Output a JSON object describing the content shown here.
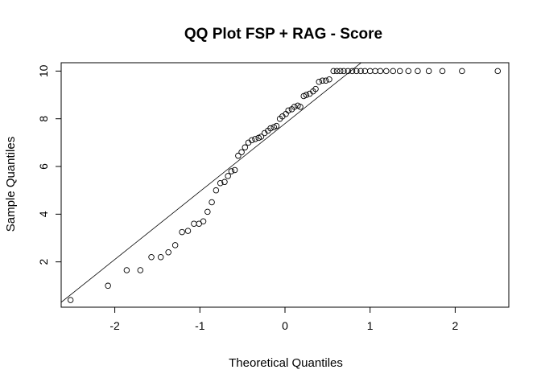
{
  "chart_data": {
    "type": "scatter",
    "subtype": "qq-plot",
    "title": "QQ Plot FSP + RAG - Score",
    "xlabel": "Theoretical Quantiles",
    "ylabel": "Sample Quantiles",
    "xlim": [
      -2.63,
      2.63
    ],
    "ylim": [
      0.1,
      10.35
    ],
    "xticks": [
      -2,
      -1,
      0,
      1,
      2
    ],
    "xtick_labels": [
      "-2",
      "-1",
      "0",
      "1",
      "2"
    ],
    "yticks": [
      2,
      4,
      6,
      8,
      10
    ],
    "ytick_labels": [
      "2",
      "4",
      "6",
      "8",
      "10"
    ],
    "grid": false,
    "reference_line": {
      "slope": 2.85,
      "intercept": 7.8
    },
    "points": [
      {
        "x": -2.52,
        "y": 0.4
      },
      {
        "x": -2.08,
        "y": 1.0
      },
      {
        "x": -1.86,
        "y": 1.65
      },
      {
        "x": -1.7,
        "y": 1.65
      },
      {
        "x": -1.57,
        "y": 2.2
      },
      {
        "x": -1.46,
        "y": 2.2
      },
      {
        "x": -1.37,
        "y": 2.4
      },
      {
        "x": -1.29,
        "y": 2.7
      },
      {
        "x": -1.21,
        "y": 3.25
      },
      {
        "x": -1.14,
        "y": 3.3
      },
      {
        "x": -1.07,
        "y": 3.6
      },
      {
        "x": -1.01,
        "y": 3.6
      },
      {
        "x": -0.96,
        "y": 3.7
      },
      {
        "x": -0.91,
        "y": 4.1
      },
      {
        "x": -0.86,
        "y": 4.5
      },
      {
        "x": -0.81,
        "y": 5.0
      },
      {
        "x": -0.76,
        "y": 5.3
      },
      {
        "x": -0.71,
        "y": 5.35
      },
      {
        "x": -0.67,
        "y": 5.6
      },
      {
        "x": -0.63,
        "y": 5.8
      },
      {
        "x": -0.59,
        "y": 5.85
      },
      {
        "x": -0.55,
        "y": 6.45
      },
      {
        "x": -0.51,
        "y": 6.6
      },
      {
        "x": -0.47,
        "y": 6.8
      },
      {
        "x": -0.43,
        "y": 7.0
      },
      {
        "x": -0.39,
        "y": 7.1
      },
      {
        "x": -0.35,
        "y": 7.15
      },
      {
        "x": -0.31,
        "y": 7.2
      },
      {
        "x": -0.28,
        "y": 7.25
      },
      {
        "x": -0.24,
        "y": 7.4
      },
      {
        "x": -0.2,
        "y": 7.5
      },
      {
        "x": -0.17,
        "y": 7.6
      },
      {
        "x": -0.13,
        "y": 7.65
      },
      {
        "x": -0.1,
        "y": 7.7
      },
      {
        "x": -0.06,
        "y": 8.0
      },
      {
        "x": -0.03,
        "y": 8.1
      },
      {
        "x": 0.01,
        "y": 8.2
      },
      {
        "x": 0.04,
        "y": 8.35
      },
      {
        "x": 0.08,
        "y": 8.4
      },
      {
        "x": 0.11,
        "y": 8.5
      },
      {
        "x": 0.15,
        "y": 8.55
      },
      {
        "x": 0.18,
        "y": 8.5
      },
      {
        "x": 0.22,
        "y": 8.95
      },
      {
        "x": 0.25,
        "y": 9.0
      },
      {
        "x": 0.29,
        "y": 9.05
      },
      {
        "x": 0.33,
        "y": 9.15
      },
      {
        "x": 0.36,
        "y": 9.25
      },
      {
        "x": 0.4,
        "y": 9.55
      },
      {
        "x": 0.44,
        "y": 9.6
      },
      {
        "x": 0.48,
        "y": 9.6
      },
      {
        "x": 0.52,
        "y": 9.65
      },
      {
        "x": 0.57,
        "y": 10
      },
      {
        "x": 0.61,
        "y": 10
      },
      {
        "x": 0.65,
        "y": 10
      },
      {
        "x": 0.69,
        "y": 10
      },
      {
        "x": 0.74,
        "y": 10
      },
      {
        "x": 0.79,
        "y": 10
      },
      {
        "x": 0.84,
        "y": 10
      },
      {
        "x": 0.89,
        "y": 10
      },
      {
        "x": 0.94,
        "y": 10
      },
      {
        "x": 1.0,
        "y": 10
      },
      {
        "x": 1.06,
        "y": 10
      },
      {
        "x": 1.12,
        "y": 10
      },
      {
        "x": 1.19,
        "y": 10
      },
      {
        "x": 1.27,
        "y": 10
      },
      {
        "x": 1.35,
        "y": 10
      },
      {
        "x": 1.45,
        "y": 10
      },
      {
        "x": 1.56,
        "y": 10
      },
      {
        "x": 1.69,
        "y": 10
      },
      {
        "x": 1.85,
        "y": 10
      },
      {
        "x": 2.08,
        "y": 10
      },
      {
        "x": 2.5,
        "y": 10
      }
    ]
  }
}
